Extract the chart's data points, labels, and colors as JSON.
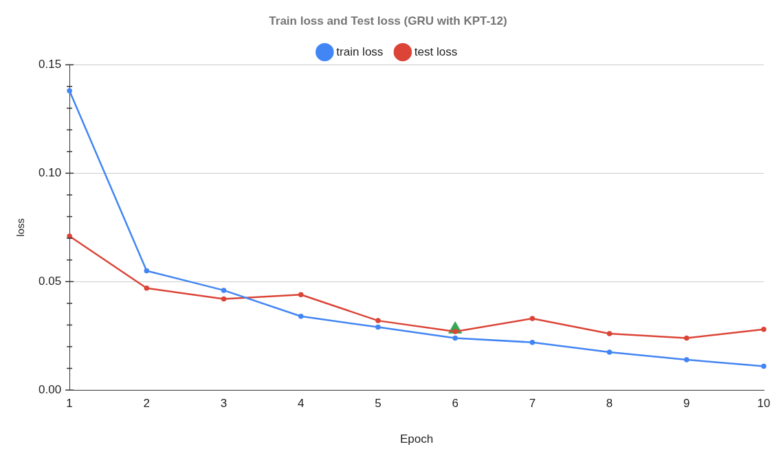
{
  "chart_data": {
    "type": "line",
    "title": "Train loss and Test loss (GRU with KPT-12)",
    "xlabel": "Epoch",
    "ylabel": "loss",
    "categories": [
      "1",
      "2",
      "3",
      "4",
      "5",
      "6",
      "7",
      "8",
      "9",
      "10"
    ],
    "series": [
      {
        "name": "train loss",
        "color": "#4285f4",
        "values": [
          0.138,
          0.055,
          0.046,
          0.034,
          0.029,
          0.024,
          0.022,
          0.0175,
          0.014,
          0.011
        ]
      },
      {
        "name": "test loss",
        "color": "#db4437",
        "values": [
          0.071,
          0.047,
          0.042,
          0.044,
          0.032,
          0.027,
          0.033,
          0.026,
          0.024,
          0.028
        ]
      },
      {
        "type": "scatter",
        "color": "#34a853",
        "marker": "triangle",
        "values": [
          null,
          null,
          null,
          null,
          null,
          0.028,
          null,
          null,
          null,
          null
        ]
      }
    ],
    "ylim": [
      0,
      0.15
    ],
    "yticks": [
      {
        "value": 0,
        "label": "0.00"
      },
      {
        "value": 0.01,
        "label": null
      },
      {
        "value": 0.02,
        "label": null
      },
      {
        "value": 0.03,
        "label": null
      },
      {
        "value": 0.04,
        "label": null
      },
      {
        "value": 0.05,
        "label": "0.05"
      },
      {
        "value": 0.06,
        "label": null
      },
      {
        "value": 0.07,
        "label": null
      },
      {
        "value": 0.08,
        "label": null
      },
      {
        "value": 0.09,
        "label": null
      },
      {
        "value": 0.1,
        "label": "0.10"
      },
      {
        "value": 0.11,
        "label": null
      },
      {
        "value": 0.12,
        "label": null
      },
      {
        "value": 0.13,
        "label": null
      },
      {
        "value": 0.14,
        "label": null
      },
      {
        "value": 0.15,
        "label": "0.15"
      }
    ],
    "grid": "y",
    "legend": "top",
    "marker": "circle",
    "line_style": "solid"
  }
}
